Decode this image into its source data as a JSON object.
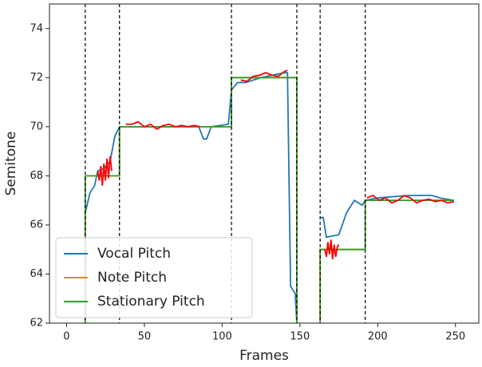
{
  "chart_data": {
    "type": "line",
    "xlabel": "Frames",
    "ylabel": "Semitone",
    "xlim": [
      -11,
      265
    ],
    "ylim": [
      62,
      75
    ],
    "xticks": [
      0,
      50,
      100,
      150,
      200,
      250
    ],
    "yticks": [
      62,
      64,
      66,
      68,
      70,
      72,
      74
    ],
    "vlines": [
      12,
      34,
      106,
      148,
      163,
      192
    ],
    "legend": "lower left",
    "series": [
      {
        "name": "Vocal Pitch",
        "color": "#1f77b4",
        "x": [
          12,
          15,
          18,
          20,
          24,
          28,
          31,
          34,
          50,
          85,
          88,
          90,
          93,
          104,
          106,
          110,
          115,
          125,
          140,
          142,
          144,
          147,
          148,
          null,
          163,
          165,
          167,
          175,
          180,
          185,
          190,
          192,
          200,
          220,
          235,
          240,
          249
        ],
        "values": [
          66.5,
          67.3,
          67.6,
          68.2,
          68.3,
          68.6,
          69.6,
          70.0,
          70.0,
          70.0,
          69.5,
          69.5,
          70.0,
          70.1,
          71.5,
          71.8,
          71.8,
          72.0,
          72.2,
          72.2,
          63.5,
          63.2,
          62.0,
          null,
          66.3,
          66.3,
          65.5,
          65.6,
          66.5,
          67.0,
          66.8,
          67.0,
          67.1,
          67.2,
          67.2,
          67.1,
          67.0
        ]
      },
      {
        "name": "Note Pitch",
        "color": "#ff7f0e",
        "x": [
          12,
          12,
          34,
          34,
          106,
          106,
          148,
          148,
          null,
          163,
          163,
          192,
          192,
          249
        ],
        "values": [
          62,
          68,
          68,
          70,
          70,
          72,
          72,
          62,
          null,
          62,
          65,
          65,
          67,
          67
        ]
      },
      {
        "name": "Stationary Pitch",
        "color": "#2ca02c",
        "x": [
          12,
          12,
          34,
          34,
          106,
          106,
          148,
          148,
          null,
          163,
          163,
          192,
          192,
          249
        ],
        "values": [
          62,
          68,
          68,
          70,
          70,
          72,
          72,
          62,
          null,
          62,
          65,
          65,
          67,
          67
        ]
      },
      {
        "color": "#ff0000",
        "x": [
          20,
          21,
          22,
          23,
          24,
          25,
          26,
          27,
          28,
          29,
          null,
          38,
          42,
          46,
          50,
          54,
          58,
          62,
          66,
          70,
          74,
          78,
          82,
          86,
          null,
          112,
          116,
          120,
          124,
          128,
          132,
          136,
          140,
          142,
          null,
          166,
          167,
          168,
          169,
          170,
          171,
          172,
          173,
          174,
          175,
          null,
          193,
          197,
          201,
          205,
          209,
          213,
          217,
          221,
          225,
          229,
          233,
          237,
          241,
          245,
          249
        ],
        "values": [
          68.2,
          67.8,
          68.4,
          67.6,
          68.5,
          67.8,
          68.7,
          67.9,
          68.8,
          68.2,
          null,
          70.1,
          70.1,
          70.2,
          70.0,
          70.1,
          69.9,
          70.05,
          70.1,
          70.0,
          70.05,
          70.0,
          70.05,
          70.0,
          null,
          71.9,
          71.85,
          72.05,
          72.1,
          72.2,
          72.1,
          72.05,
          72.25,
          72.3,
          null,
          65.0,
          64.7,
          65.3,
          64.8,
          65.4,
          64.6,
          65.2,
          64.7,
          65.1,
          65.2,
          null,
          67.1,
          67.2,
          67.0,
          67.1,
          66.9,
          67.0,
          67.2,
          67.1,
          66.9,
          67.0,
          67.05,
          66.95,
          67.0,
          66.9,
          66.95
        ]
      }
    ]
  }
}
